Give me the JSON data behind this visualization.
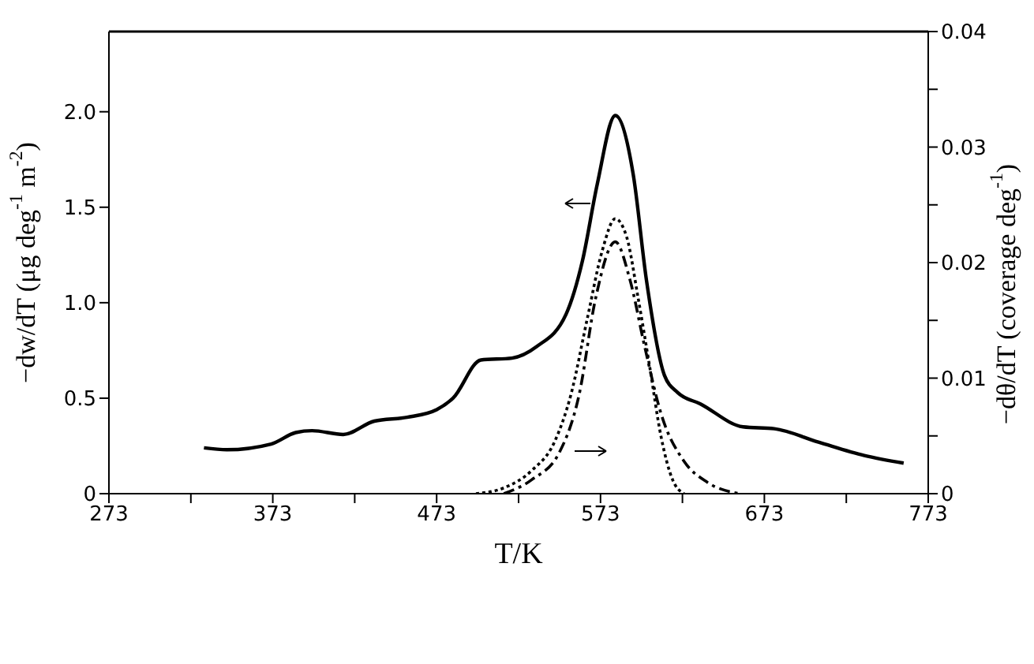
{
  "chart_data": {
    "type": "line",
    "xlabel": "T/K",
    "ylabel": "−dw/dT (μg deg$^{-1}$ m$^{-2}$)",
    "y2label": "−dθ/dT (coverage deg$^{-1}$)",
    "xlim": [
      273,
      773
    ],
    "xticks": [
      273,
      {
        "value": 323,
        "label": null
      },
      373,
      {
        "value": 423,
        "label": null
      },
      473,
      {
        "value": 523,
        "label": null
      },
      573,
      {
        "value": 623,
        "label": null
      },
      673,
      {
        "value": 723,
        "label": null
      },
      773
    ],
    "ylim": [
      0,
      2.42
    ],
    "yticks": [
      0,
      0.5,
      {
        "value": 1,
        "label": "1.0"
      },
      1.5,
      {
        "value": 2,
        "label": "2.0"
      }
    ],
    "y2lim": [
      0,
      0.04
    ],
    "y2ticks": [
      0,
      {
        "value": 0.005,
        "label": null
      },
      0.01,
      {
        "value": 0.015,
        "label": null
      },
      0.02,
      {
        "value": 0.025,
        "label": null
      },
      0.03,
      {
        "value": 0.035,
        "label": null
      },
      0.04
    ],
    "grid": false,
    "legend": false,
    "marker": "none",
    "series": [
      {
        "color": "#000000",
        "line_style": "solid",
        "x": [
          331,
          345,
          372,
          387,
          397,
          416,
          435,
          455,
          473,
          483,
          500,
          519,
          534,
          552,
          562,
          571,
          582,
          593,
          601,
          612,
          620,
          634,
          660,
          679,
          706,
          734,
          758
        ],
        "values": [
          0.24,
          0.23,
          0.26,
          0.32,
          0.33,
          0.31,
          0.38,
          0.4,
          0.44,
          0.5,
          0.7,
          0.71,
          0.77,
          0.94,
          1.22,
          1.62,
          1.98,
          1.67,
          1.12,
          0.62,
          0.53,
          0.47,
          0.35,
          0.34,
          0.27,
          0.2,
          0.16
        ]
      },
      {
        "color": "#000000",
        "line_style": "dotted",
        "axis": "y2",
        "x": [
          497,
          514,
          531,
          545,
          555,
          565,
          574,
          582,
          589,
          596,
          603,
          610,
          617,
          624
        ],
        "values": [
          0,
          0.0005,
          0.002,
          0.0045,
          0.0086,
          0.0152,
          0.021,
          0.0238,
          0.0222,
          0.0169,
          0.011,
          0.0049,
          0.0012,
          0
        ]
      },
      {
        "color": "#000000",
        "line_style": "dashed",
        "axis": "y2",
        "x": [
          514,
          531,
          548,
          560,
          570,
          582,
          591,
          600,
          610,
          624,
          638,
          658
        ],
        "values": [
          0,
          0.0012,
          0.0036,
          0.0086,
          0.0169,
          0.0218,
          0.0185,
          0.0127,
          0.0069,
          0.0028,
          0.001,
          0
        ]
      }
    ]
  }
}
